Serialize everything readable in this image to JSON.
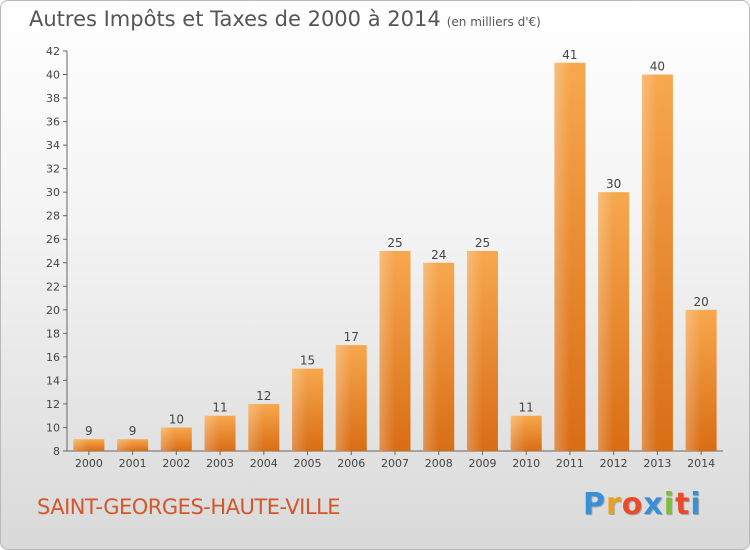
{
  "header": {
    "title": "Autres Impôts et Taxes de 2000 à 2014",
    "subtitle": "(en milliers d'€)"
  },
  "footer": {
    "commune": "SAINT-GEORGES-HAUTE-VILLE",
    "logo_letters": [
      "P",
      "r",
      "o",
      "x",
      "i",
      "t",
      "i"
    ],
    "logo_colors": [
      "#3a8fd6",
      "#e8a020",
      "#e84a2a",
      "#3a8fd6",
      "#7cbd3a",
      "#e84a2a",
      "#3a8fd6"
    ]
  },
  "chart_data": {
    "type": "bar",
    "title": "Autres Impôts et Taxes de 2000 à 2014",
    "subtitle": "(en milliers d'€)",
    "categories": [
      "2000",
      "2001",
      "2002",
      "2003",
      "2004",
      "2005",
      "2006",
      "2007",
      "2008",
      "2009",
      "2010",
      "2011",
      "2012",
      "2013",
      "2014"
    ],
    "values": [
      9,
      9,
      10,
      11,
      12,
      15,
      17,
      25,
      24,
      25,
      11,
      41,
      30,
      40,
      20
    ],
    "xlabel": "",
    "ylabel": "",
    "ylim": [
      8,
      42
    ],
    "yticks": [
      8,
      10,
      12,
      14,
      16,
      18,
      20,
      22,
      24,
      26,
      28,
      30,
      32,
      34,
      36,
      38,
      40,
      42
    ],
    "grid": false,
    "bar_color": "#f0922e",
    "data_labels": true
  }
}
